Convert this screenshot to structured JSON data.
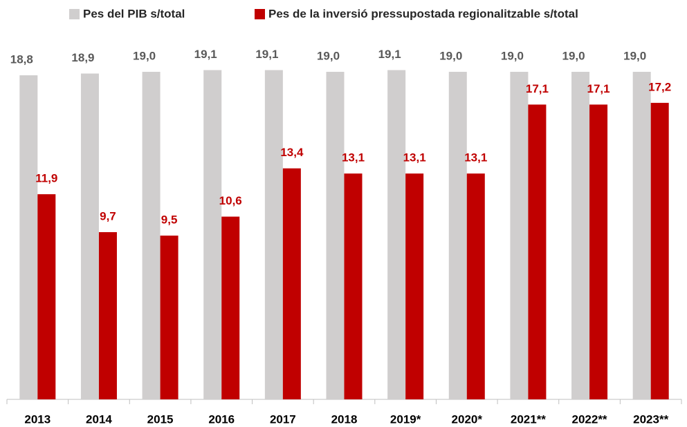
{
  "chart_data": {
    "type": "bar",
    "categories": [
      "2013",
      "2014",
      "2015",
      "2016",
      "2017",
      "2018",
      "2019*",
      "2020*",
      "2021**",
      "2022**",
      "2023**"
    ],
    "series": [
      {
        "name": "Pes del PIB s/total",
        "color": "#d0cece",
        "values": [
          18.8,
          18.9,
          19.0,
          19.1,
          19.1,
          19.0,
          19.1,
          19.0,
          19.0,
          19.0,
          19.0
        ],
        "value_labels": [
          "18,8",
          "18,9",
          "19,0",
          "19,1",
          "19,1",
          "19,0",
          "19,1",
          "19,0",
          "19,0",
          "19,0",
          "19,0"
        ]
      },
      {
        "name": "Pes de la inversió pressupostada regionalitzable s/total",
        "color": "#c00000",
        "values": [
          11.9,
          9.7,
          9.5,
          10.6,
          13.4,
          13.1,
          13.1,
          13.1,
          17.1,
          17.1,
          17.2
        ],
        "value_labels": [
          "11,9",
          "9,7",
          "9,5",
          "10,6",
          "13,4",
          "13,1",
          "13,1",
          "13,1",
          "17,1",
          "17,1",
          "17,2"
        ]
      }
    ]
  }
}
